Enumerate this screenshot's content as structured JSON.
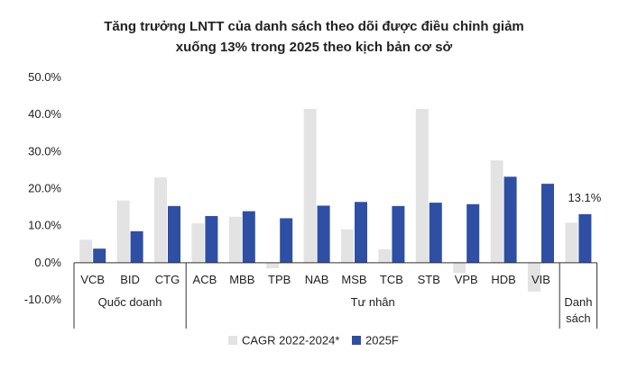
{
  "chart_data": {
    "type": "bar",
    "title_line1": "Tăng trưởng LNTT của danh sách theo dõi được điều chỉnh giảm",
    "title_line2": "xuống 13% trong 2025 theo kịch bản cơ sở",
    "categories": [
      "VCB",
      "BID",
      "CTG",
      "ACB",
      "MBB",
      "TPB",
      "NAB",
      "MSB",
      "TCB",
      "STB",
      "VPB",
      "HDB",
      "VIB",
      "Danh sách"
    ],
    "series": [
      {
        "name": "CAGR 2022-2024*",
        "color": "#e3e3e3",
        "values": [
          6.2,
          16.8,
          23.0,
          10.6,
          12.4,
          -1.5,
          41.5,
          9.0,
          3.6,
          41.5,
          -2.8,
          27.6,
          -7.8,
          10.8
        ]
      },
      {
        "name": "2025F",
        "color": "#2e4fa3",
        "values": [
          3.8,
          8.5,
          15.3,
          12.6,
          13.9,
          12.0,
          15.4,
          16.4,
          15.3,
          16.2,
          15.8,
          23.2,
          21.3,
          13.1
        ]
      }
    ],
    "ylim": [
      -10,
      50
    ],
    "yticks": [
      -10,
      0,
      10,
      20,
      30,
      40,
      50
    ],
    "ytick_labels": [
      "-10.0%",
      "0.0%",
      "10.0%",
      "20.0%",
      "30.0%",
      "40.0%",
      "50.0%"
    ],
    "groups": [
      {
        "label": "Quốc doanh",
        "start": 0,
        "end": 2
      },
      {
        "label": "Tư nhân",
        "start": 3,
        "end": 12
      },
      {
        "label": "Danh",
        "label2": "sách",
        "start": 13,
        "end": 13
      }
    ],
    "annotation": {
      "index": 13,
      "text": "13.1%"
    },
    "grid": false,
    "legend_position": "bottom"
  }
}
